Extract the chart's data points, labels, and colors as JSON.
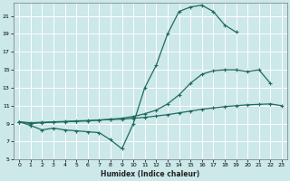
{
  "bg_color": "#cce8e8",
  "grid_color": "#ffffff",
  "line_color": "#1e6b5e",
  "xlabel": "Humidex (Indice chaleur)",
  "xlim": [
    -0.5,
    23.5
  ],
  "ylim": [
    5,
    22.5
  ],
  "yticks": [
    5,
    7,
    9,
    11,
    13,
    15,
    17,
    19,
    21
  ],
  "xticks": [
    0,
    1,
    2,
    3,
    4,
    5,
    6,
    7,
    8,
    9,
    10,
    11,
    12,
    13,
    14,
    15,
    16,
    17,
    18,
    19,
    20,
    21,
    22,
    23
  ],
  "line1_x": [
    0,
    1,
    2,
    3,
    4,
    5,
    6,
    7,
    8,
    9,
    10,
    11,
    12,
    13,
    14,
    15,
    16,
    17,
    18,
    19
  ],
  "line1_y": [
    9.2,
    8.8,
    8.3,
    8.5,
    8.3,
    8.2,
    8.1,
    8.0,
    7.2,
    6.2,
    9.0,
    13.0,
    15.5,
    19.0,
    21.5,
    22.0,
    22.2,
    21.5,
    20.0,
    19.2
  ],
  "line2_x": [
    0,
    1,
    2,
    3,
    4,
    5,
    6,
    7,
    8,
    9,
    10,
    11,
    12,
    13,
    14,
    15,
    16,
    17,
    18,
    19,
    20,
    21,
    22,
    23
  ],
  "line2_y": [
    9.2,
    9.1,
    9.15,
    9.2,
    9.25,
    9.3,
    9.35,
    9.4,
    9.45,
    9.5,
    9.6,
    9.7,
    9.85,
    10.0,
    10.2,
    10.4,
    10.6,
    10.75,
    10.9,
    11.0,
    11.1,
    11.15,
    11.2,
    11.0
  ],
  "line3_x": [
    0,
    1,
    2,
    3,
    4,
    5,
    6,
    7,
    8,
    9,
    10,
    11,
    12,
    13,
    14,
    15,
    16,
    17,
    18,
    19,
    20,
    21,
    22
  ],
  "line3_y": [
    9.2,
    9.0,
    9.1,
    9.15,
    9.2,
    9.25,
    9.3,
    9.4,
    9.5,
    9.6,
    9.8,
    10.1,
    10.5,
    11.2,
    12.2,
    13.5,
    14.5,
    14.9,
    15.0,
    15.0,
    14.8,
    15.0,
    13.5
  ]
}
